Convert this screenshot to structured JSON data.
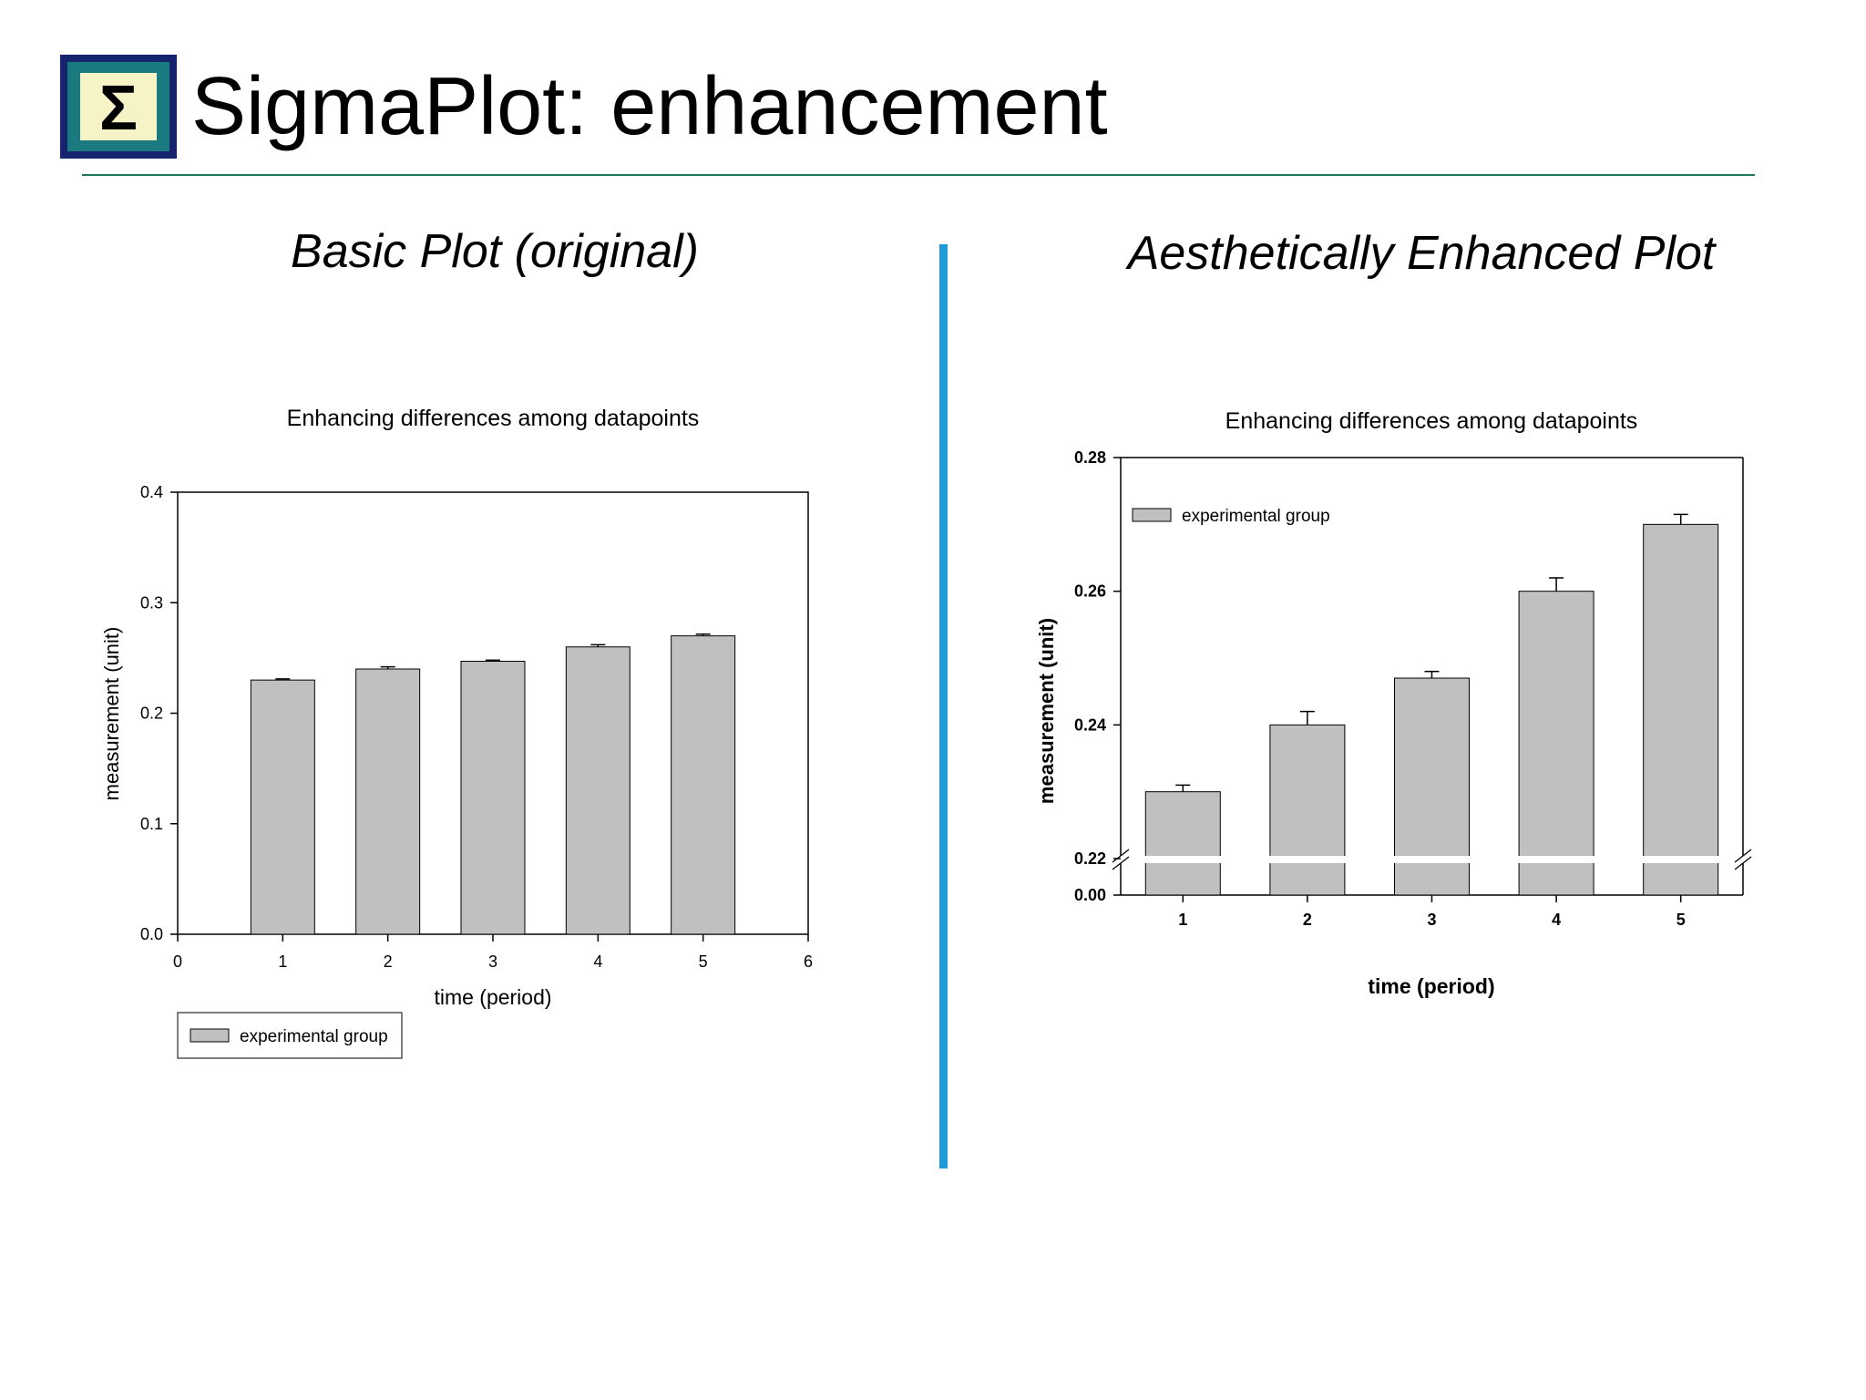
{
  "slide": {
    "title": "SigmaPlot: enhancement",
    "logo_symbol": "Σ",
    "colors": {
      "rule": "#1d7a52",
      "divider": "#1e9bd7",
      "bar_fill": "#c0c0c0",
      "logo_outer": "#16246e",
      "logo_inner": "#1a7a80",
      "logo_paper": "#f6f3c6"
    }
  },
  "panels": {
    "left_heading": "Basic Plot (original)",
    "right_heading": "Aesthetically Enhanced Plot"
  },
  "chart_data": [
    {
      "type": "bar",
      "title": "Enhancing differences among datapoints",
      "xlabel": "time (period)",
      "ylabel": "measurement (unit)",
      "x": [
        1,
        2,
        3,
        4,
        5
      ],
      "xlim": [
        0,
        6
      ],
      "xticks": [
        "0",
        "1",
        "2",
        "3",
        "4",
        "5",
        "6"
      ],
      "ylim": [
        0,
        0.4
      ],
      "yticks": [
        "0.0",
        "0.1",
        "0.2",
        "0.3",
        "0.4"
      ],
      "series": [
        {
          "name": "experimental group",
          "values": [
            0.23,
            0.24,
            0.247,
            0.26,
            0.27
          ],
          "errors": [
            0.001,
            0.002,
            0.001,
            0.002,
            0.0015
          ]
        }
      ],
      "grid": false,
      "legend": "below-left"
    },
    {
      "type": "bar",
      "title": "Enhancing differences among datapoints",
      "xlabel": "time (period)",
      "ylabel": "measurement (unit)",
      "categories": [
        "1",
        "2",
        "3",
        "4",
        "5"
      ],
      "ylim": [
        0.22,
        0.28
      ],
      "axis_break": [
        0.0,
        0.22
      ],
      "yticks": [
        "0.00",
        "0.22",
        "0.24",
        "0.26",
        "0.28"
      ],
      "series": [
        {
          "name": "experimental group",
          "values": [
            0.23,
            0.24,
            0.247,
            0.26,
            0.27
          ],
          "errors": [
            0.001,
            0.002,
            0.001,
            0.002,
            0.0015
          ]
        }
      ],
      "grid": false,
      "legend": "top-left"
    }
  ]
}
